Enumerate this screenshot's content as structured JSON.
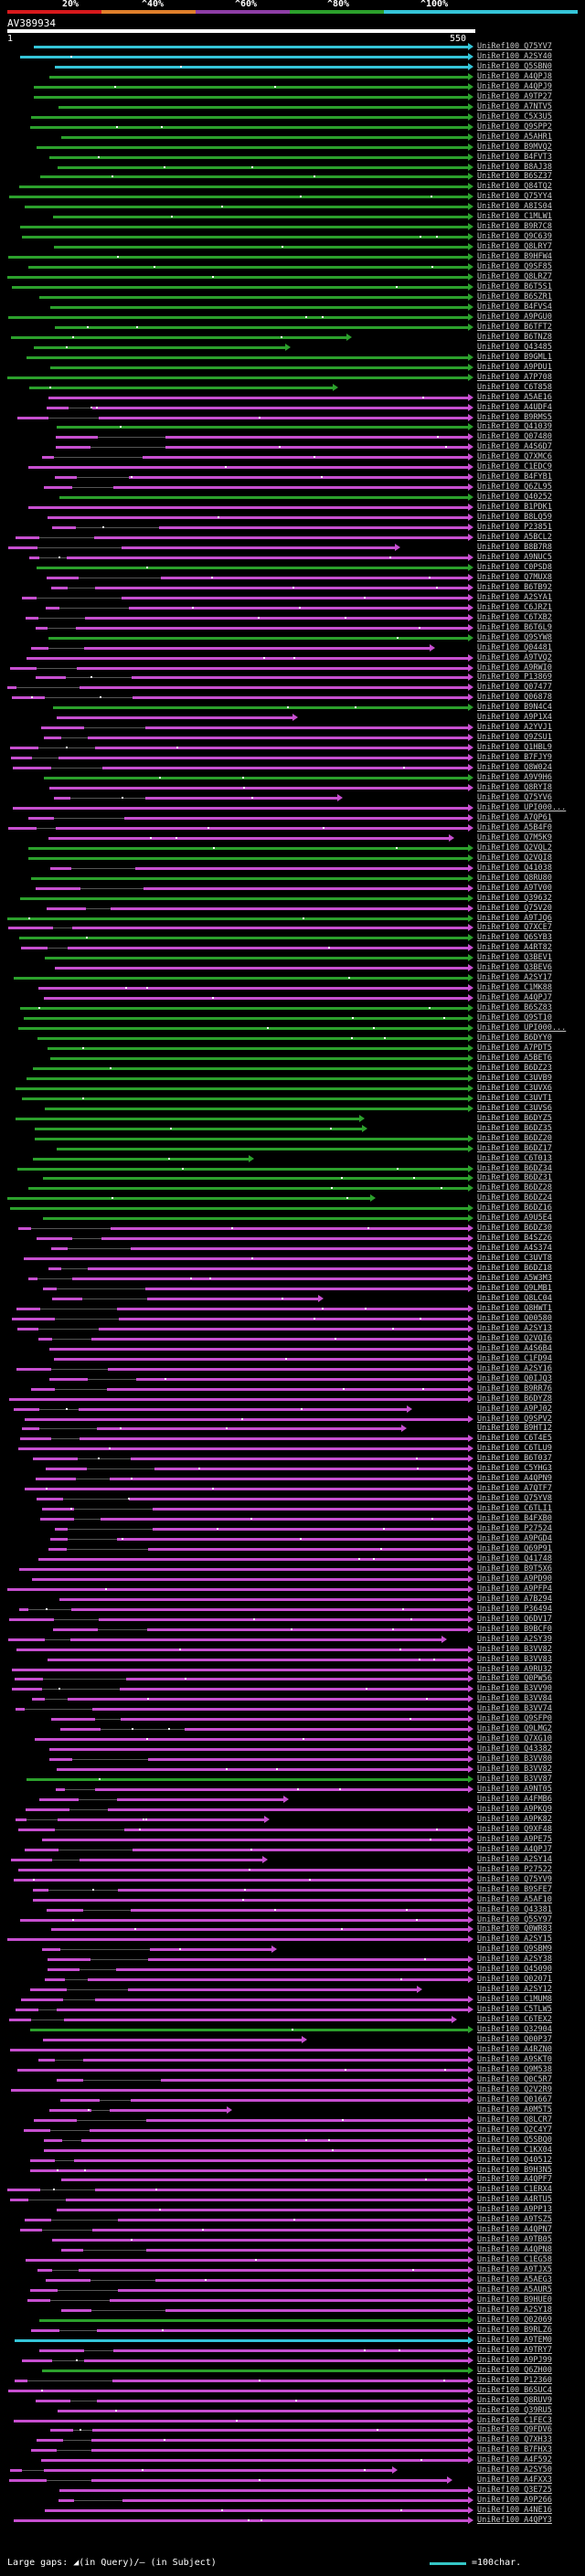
{
  "scale": {
    "labels": [
      "20%",
      "^40%",
      "^60%",
      "^80%",
      "^100%"
    ],
    "colors": [
      "#d7191c",
      "#e07f2b",
      "#8e3ea6",
      "#2ca02c",
      "#35c5d8"
    ]
  },
  "query": {
    "title": "AV389934",
    "start": "1",
    "end": "550"
  },
  "colors": {
    "cyan": "#35c5d8",
    "green": "#2ca02c",
    "magenta": "#c74fd0"
  },
  "hits": [
    "UniRef100_Q75YV7",
    "UniRef100_A2SY40",
    "UniRef100_Q5SBN0",
    "UniRef100_A4QPJ8",
    "UniRef100_A4QPJ9",
    "UniRef100_A9TP27",
    "UniRef100_A7NTV5",
    "UniRef100_C5X3U5",
    "UniRef100_Q9SPP2",
    "UniRef100_A5AHR1",
    "UniRef100_B9MVQ2",
    "UniRef100_B4FVT3",
    "UniRef100_B8AJ38",
    "UniRef100_B6SZ37",
    "UniRef100_Q84TQ2",
    "UniRef100_Q75YY4",
    "UniRef100_A8IS04",
    "UniRef100_C1MLW1",
    "UniRef100_B9R7C8",
    "UniRef100_Q9C639",
    "UniRef100_Q8LRY7",
    "UniRef100_B9HFW4",
    "UniRef100_Q9SF85",
    "UniRef100_Q8LRZ7",
    "UniRef100_B6T5S1",
    "UniRef100_B6SZR1",
    "UniRef100_B4FVS4",
    "UniRef100_A9PGU0",
    "UniRef100_B6TFT2",
    "UniRef100_B6TNZ8",
    "UniRef100_Q43485",
    "UniRef100_B9GML1",
    "UniRef100_A9PDU1",
    "UniRef100_A7P708",
    "UniRef100_C6T858",
    "UniRef100_A5AE16",
    "UniRef100_A4UDF4",
    "UniRef100_B9RMS5",
    "UniRef100_Q41039",
    "UniRef100_Q07480",
    "UniRef100_A4S6D7",
    "UniRef100_Q7XMC6",
    "UniRef100_C1EDC9",
    "UniRef100_B4FYB1",
    "UniRef100_Q6ZL95",
    "UniRef100_Q40252",
    "UniRef100_B1PDK1",
    "UniRef100_B8LQ59",
    "UniRef100_P23851",
    "UniRef100_A5BCL2",
    "UniRef100_B8B7R8",
    "UniRef100_A9NUC5",
    "UniRef100_C0PSD8",
    "UniRef100_Q7MUX8",
    "UniRef100_B6TB92",
    "UniRef100_A2SYA1",
    "UniRef100_C6JRZ1",
    "UniRef100_C6TXB2",
    "UniRef100_B6T6L9",
    "UniRef100_Q9SYW8",
    "UniRef100_Q04481",
    "UniRef100_A9TVQ2",
    "UniRef100_A9RWI0",
    "UniRef100_P13869",
    "UniRef100_Q07477",
    "UniRef100_Q06878",
    "UniRef100_B9N4C4",
    "UniRef100_A9P1X4",
    "UniRef100_A2YVJ1",
    "UniRef100_Q9ZSU1",
    "UniRef100_Q1HBL9",
    "UniRef100_B7FJY9",
    "UniRef100_Q8W024",
    "UniRef100_A9V9H6",
    "UniRef100_Q8RYI8",
    "UniRef100_Q75YV6",
    "UniRef100_UPI000...",
    "UniRef100_A7QP61",
    "UniRef100_A5B4F0",
    "UniRef100_Q7M5K9",
    "UniRef100_Q2VQL2",
    "UniRef100_Q2VQI8",
    "UniRef100_Q41038",
    "UniRef100_Q8RU80",
    "UniRef100_A9TV00",
    "UniRef100_Q39632",
    "UniRef100_Q75V20",
    "UniRef100_A9TJQ6",
    "UniRef100_Q7XCE7",
    "UniRef100_Q6SYB3",
    "UniRef100_A4RT82",
    "UniRef100_Q3BEV1",
    "UniRef100_Q3BEV6",
    "UniRef100_A2SY17",
    "UniRef100_C1MK88",
    "UniRef100_A4QPJ7",
    "UniRef100_B6SZ83",
    "UniRef100_Q9ST10",
    "UniRef100_UPI000...",
    "UniRef100_B6DYY0",
    "UniRef100_A7PDT5",
    "UniRef100_A5BET6",
    "UniRef100_B6DZ23",
    "UniRef100_C3UVB9",
    "UniRef100_C3UVX6",
    "UniRef100_C3UVT1",
    "UniRef100_C3UVS6",
    "UniRef100_B6DYZ5",
    "UniRef100_B6DZ35",
    "UniRef100_B6DZ20",
    "UniRef100_B6DZ17",
    "UniRef100_C6T013",
    "UniRef100_B6DZ34",
    "UniRef100_B6DZ31",
    "UniRef100_B6DZ28",
    "UniRef100_B6DZ24",
    "UniRef100_B6DZ16",
    "UniRef100_A9U5E4",
    "UniRef100_B6DZ30",
    "UniRef100_B4SZ26",
    "UniRef100_A4S374",
    "UniRef100_C3UVT8",
    "UniRef100_B6DZ18",
    "UniRef100_A5W3M3",
    "UniRef100_Q9LMB1",
    "UniRef100_Q8LC04",
    "UniRef100_Q8HWT1",
    "UniRef100_Q00580",
    "UniRef100_A2SY13",
    "UniRef100_Q2VQI6",
    "UniRef100_A4S6B4",
    "UniRef100_C1FD94",
    "UniRef100_A2SY16",
    "UniRef100_Q0IJQ3",
    "UniRef100_B9RR76",
    "UniRef100_B6DYZ8",
    "UniRef100_A9PJ02",
    "UniRef100_Q9SPV2",
    "UniRef100_B9HT12",
    "UniRef100_C6T4E5",
    "UniRef100_C6TLU9",
    "UniRef100_B6T037",
    "UniRef100_C5YHG3",
    "UniRef100_A4QPN9",
    "UniRef100_A7QTF7",
    "UniRef100_Q75YV8",
    "UniRef100_C6TLI1",
    "UniRef100_B4FXB0",
    "UniRef100_P27524",
    "UniRef100_A9PGD4",
    "UniRef100_Q69P91",
    "UniRef100_Q41748",
    "UniRef100_B9T5X6",
    "UniRef100_A9PD90",
    "UniRef100_A9PFP4",
    "UniRef100_A7B294",
    "UniRef100_P36494",
    "UniRef100_Q6DV17",
    "UniRef100_B9BCF0",
    "UniRef100_A2SY39",
    "UniRef100_B3VV82",
    "UniRef100_B3VV83",
    "UniRef100_A9RU32",
    "UniRef100_Q0PW56",
    "UniRef100_B3VV90",
    "UniRef100_B3VV84",
    "UniRef100_B3VV74",
    "UniRef100_Q9SFP0",
    "UniRef100_Q9LMG2",
    "UniRef100_Q7XG10",
    "UniRef100_Q43382",
    "UniRef100_B3VV80",
    "UniRef100_B3VV82",
    "UniRef100_B3VV87",
    "UniRef100_A9NT05",
    "UniRef100_A4FMB6",
    "UniRef100_A9PKQ9",
    "UniRef100_A9PK82",
    "UniRef100_Q9XF48",
    "UniRef100_A9PE75",
    "UniRef100_A4QPJ7",
    "UniRef100_A2SY14",
    "UniRef100_P27522",
    "UniRef100_Q75YV9",
    "UniRef100_B9SFE7",
    "UniRef100_A5AF10",
    "UniRef100_Q43381",
    "UniRef100_Q5SY97",
    "UniRef100_Q0WR83",
    "UniRef100_A2SY15",
    "UniRef100_Q9SBM9",
    "UniRef100_A2SY38",
    "UniRef100_Q45090",
    "UniRef100_Q02071",
    "UniRef100_A2SY12",
    "UniRef100_C1MUM8",
    "UniRef100_C5TLW5",
    "UniRef100_C6TEX2",
    "UniRef100_Q32904",
    "UniRef100_Q00P37",
    "UniRef100_A4RZN0",
    "UniRef100_A9SKT0",
    "UniRef100_Q9M538",
    "UniRef100_Q0C5R7",
    "UniRef100_Q2V2R9",
    "UniRef100_Q01667",
    "UniRef100_A0M5T5",
    "UniRef100_Q8LCR7",
    "UniRef100_Q2C4Y7",
    "UniRef100_Q5SBQ0",
    "UniRef100_C1KX04",
    "UniRef100_Q40512",
    "UniRef100_B9H3N5",
    "UniRef100_A4QPF7",
    "UniRef100_C1ERX4",
    "UniRef100_A4RTU5",
    "UniRef100_A9PP13",
    "UniRef100_A9TSZ5",
    "UniRef100_A4QPN7",
    "UniRef100_A9TB05",
    "UniRef100_A4QPN8",
    "UniRef100_C1EG58",
    "UniRef100_A9TJX5",
    "UniRef100_A5AEG3",
    "UniRef100_A5AUR5",
    "UniRef100_B9HUE0",
    "UniRef100_A2SY18",
    "UniRef100_Q02069",
    "UniRef100_B9RLZ6",
    "UniRef100_A9TEM0",
    "UniRef100_A9TRY7",
    "UniRef100_A9PJ99",
    "UniRef100_Q6ZH00",
    "UniRef100_P12360",
    "UniRef100_B6SUC4",
    "UniRef100_Q8RUV9",
    "UniRef100_Q39RU5",
    "UniRef100_C1FEC3",
    "UniRef100_Q9FDV6",
    "UniRef100_Q7XH33",
    "UniRef100_B7FHX3",
    "UniRef100_A4F592",
    "UniRef100_A2SY50",
    "UniRef100_A4FXX3",
    "UniRef100_Q3E725",
    "UniRef100_A9P266",
    "UniRef100_A4NE16",
    "UniRef100_A4QPY3"
  ],
  "legend": {
    "text": "Large gaps: ◢(in Query)/— (in Subject)",
    "unit": "=100char."
  }
}
